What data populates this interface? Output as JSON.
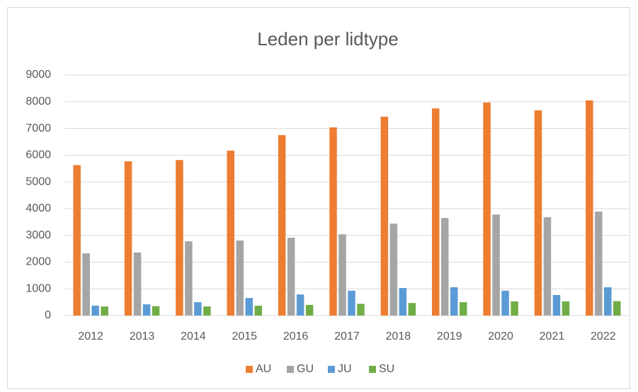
{
  "chart_data": {
    "type": "bar",
    "title": "Leden per lidtype",
    "categories": [
      "2012",
      "2013",
      "2014",
      "2015",
      "2016",
      "2017",
      "2018",
      "2019",
      "2020",
      "2021",
      "2022"
    ],
    "series": [
      {
        "name": "AU",
        "color": "#ed7d31",
        "values": [
          5630,
          5770,
          5820,
          6170,
          6750,
          7040,
          7440,
          7750,
          7970,
          7680,
          8050
        ]
      },
      {
        "name": "GU",
        "color": "#a5a5a5",
        "values": [
          2330,
          2360,
          2780,
          2810,
          2910,
          3040,
          3440,
          3650,
          3780,
          3680,
          3890
        ]
      },
      {
        "name": "JU",
        "color": "#5b9bd5",
        "values": [
          370,
          420,
          500,
          660,
          790,
          930,
          1030,
          1060,
          930,
          770,
          1060
        ]
      },
      {
        "name": "SU",
        "color": "#70ad47",
        "values": [
          340,
          350,
          340,
          370,
          400,
          440,
          470,
          500,
          530,
          530,
          540
        ]
      }
    ],
    "ylim": [
      0,
      9000
    ],
    "yticks": [
      0,
      1000,
      2000,
      3000,
      4000,
      5000,
      6000,
      7000,
      8000,
      9000
    ],
    "grid": true,
    "legend": "bottom"
  }
}
